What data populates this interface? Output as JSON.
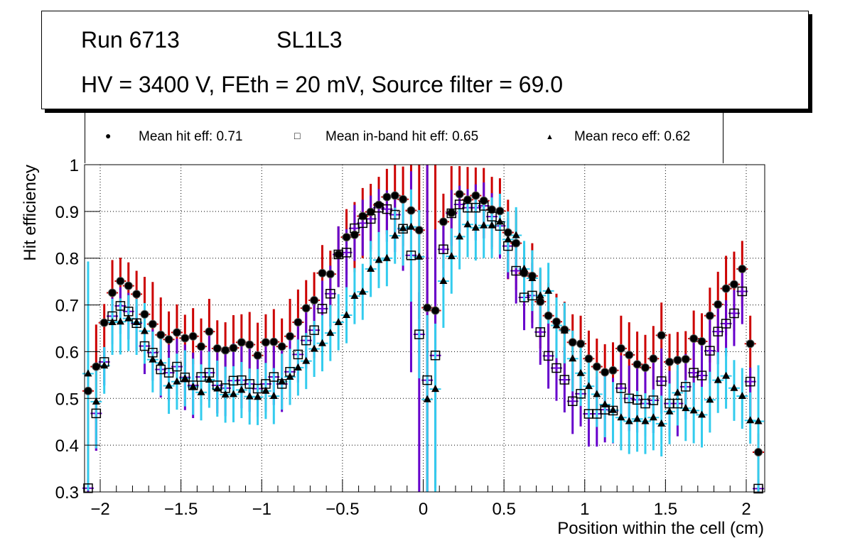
{
  "title_box": {
    "line1_left": "Run 6713",
    "line1_right": "SL1L3",
    "line2": "HV = 3400 V, FEth = 20 mV, Source filter = 69.0"
  },
  "legend": [
    {
      "symbol": "filled-circle",
      "label": "Mean hit  eff: 0.71"
    },
    {
      "symbol": "open-square",
      "label": "Mean in-band hit eff: 0.65"
    },
    {
      "symbol": "filled-triangle",
      "label": "Mean reco eff: 0.62"
    }
  ],
  "chart_data": {
    "type": "scatter",
    "title": "Run 6713 SL1L3 — HV = 3400 V, FEth = 20 mV, Source filter = 69.0",
    "xlabel": "Position within the cell (cm)",
    "ylabel": "Hit efficiency",
    "xlim": [
      -2.1,
      2.1
    ],
    "ylim": [
      0.3,
      1.0
    ],
    "xticks": [
      -2,
      -1.5,
      -1,
      -0.5,
      0,
      0.5,
      1,
      1.5,
      2
    ],
    "xtick_labels": [
      "−2",
      "−1.5",
      "−1",
      "−0.5",
      "0",
      "0.5",
      "1",
      "1.5",
      "2"
    ],
    "yticks": [
      0.3,
      0.4,
      0.5,
      0.6,
      0.7,
      0.8,
      0.9,
      1.0
    ],
    "ytick_labels": [
      "0.3",
      "0.4",
      "0.5",
      "0.6",
      "0.7",
      "0.8",
      "0.9",
      "1"
    ],
    "grid": true,
    "legend_position": "top",
    "x": [
      -2.075,
      -2.025,
      -1.975,
      -1.925,
      -1.875,
      -1.825,
      -1.775,
      -1.725,
      -1.675,
      -1.625,
      -1.575,
      -1.525,
      -1.475,
      -1.425,
      -1.375,
      -1.325,
      -1.275,
      -1.225,
      -1.175,
      -1.125,
      -1.075,
      -1.025,
      -0.975,
      -0.925,
      -0.875,
      -0.825,
      -0.775,
      -0.725,
      -0.675,
      -0.625,
      -0.575,
      -0.525,
      -0.475,
      -0.425,
      -0.375,
      -0.325,
      -0.275,
      -0.225,
      -0.175,
      -0.125,
      -0.075,
      -0.025,
      0.025,
      0.075,
      0.125,
      0.175,
      0.225,
      0.275,
      0.325,
      0.375,
      0.425,
      0.475,
      0.525,
      0.575,
      0.625,
      0.675,
      0.725,
      0.775,
      0.825,
      0.875,
      0.925,
      0.975,
      1.025,
      1.075,
      1.125,
      1.175,
      1.225,
      1.275,
      1.325,
      1.375,
      1.425,
      1.475,
      1.525,
      1.575,
      1.625,
      1.675,
      1.725,
      1.775,
      1.825,
      1.875,
      1.925,
      1.975,
      2.025,
      2.075
    ],
    "series": [
      {
        "name": "Mean hit  eff: 0.71",
        "marker": "filled-circle",
        "error_color": "#cc0000",
        "values": [
          0.516,
          0.568,
          0.662,
          0.726,
          0.751,
          0.741,
          0.723,
          0.68,
          0.659,
          0.636,
          0.626,
          0.641,
          0.629,
          0.633,
          0.611,
          0.643,
          0.607,
          0.603,
          0.608,
          0.62,
          0.615,
          0.592,
          0.62,
          0.621,
          0.611,
          0.633,
          0.663,
          0.693,
          0.71,
          0.768,
          0.766,
          0.808,
          0.845,
          0.85,
          0.89,
          0.899,
          0.914,
          0.931,
          0.934,
          0.926,
          0.902,
          0.86,
          0.694,
          0.688,
          0.878,
          0.897,
          0.937,
          0.925,
          0.934,
          0.923,
          0.904,
          0.901,
          0.855,
          0.832,
          0.768,
          0.762,
          0.707,
          0.677,
          0.664,
          0.647,
          0.62,
          0.617,
          0.585,
          0.568,
          0.556,
          0.56,
          0.607,
          0.593,
          0.573,
          0.566,
          0.585,
          0.635,
          0.578,
          0.582,
          0.584,
          0.628,
          0.622,
          0.677,
          0.701,
          0.735,
          0.744,
          0.777,
          0.617,
          0.385
        ],
        "err_up": [
          0.04,
          0.09,
          0.04,
          0.07,
          0.05,
          0.05,
          0.05,
          0.08,
          0.09,
          0.08,
          0.06,
          0.06,
          0.05,
          0.06,
          0.06,
          0.07,
          0.06,
          0.06,
          0.07,
          0.06,
          0.07,
          0.07,
          0.06,
          0.07,
          0.06,
          0.08,
          0.07,
          0.06,
          0.06,
          0.06,
          0.05,
          0.06,
          0.06,
          0.07,
          0.06,
          0.06,
          0.06,
          0.06,
          0.07,
          0.07,
          0.1,
          0.14,
          0.31,
          0.32,
          0.06,
          0.1,
          0.06,
          0.07,
          0.06,
          0.07,
          0.07,
          0.07,
          0.07,
          0.07,
          0.06,
          0.07,
          0.07,
          0.07,
          0.06,
          0.06,
          0.06,
          0.06,
          0.06,
          0.06,
          0.06,
          0.06,
          0.07,
          0.07,
          0.07,
          0.07,
          0.07,
          0.07,
          0.06,
          0.06,
          0.06,
          0.06,
          0.06,
          0.06,
          0.07,
          0.07,
          0.07,
          0.06,
          0.06,
          0.04
        ],
        "err_down": [
          0.22,
          0.18,
          0.08,
          0.07,
          0.06,
          0.06,
          0.06,
          0.07,
          0.08,
          0.08,
          0.06,
          0.06,
          0.06,
          0.06,
          0.06,
          0.06,
          0.06,
          0.06,
          0.06,
          0.06,
          0.06,
          0.06,
          0.06,
          0.06,
          0.06,
          0.06,
          0.07,
          0.07,
          0.07,
          0.07,
          0.07,
          0.07,
          0.08,
          0.08,
          0.09,
          0.08,
          0.08,
          0.08,
          0.09,
          0.1,
          0.14,
          0.19,
          0.42,
          0.38,
          0.1,
          0.09,
          0.08,
          0.08,
          0.08,
          0.08,
          0.08,
          0.09,
          0.1,
          0.1,
          0.1,
          0.1,
          0.1,
          0.1,
          0.1,
          0.1,
          0.1,
          0.1,
          0.1,
          0.1,
          0.1,
          0.1,
          0.1,
          0.1,
          0.1,
          0.1,
          0.1,
          0.1,
          0.1,
          0.1,
          0.1,
          0.1,
          0.1,
          0.1,
          0.1,
          0.1,
          0.1,
          0.08,
          0.16,
          0.09
        ]
      },
      {
        "name": "Mean in-band hit eff: 0.65",
        "marker": "open-square",
        "error_color": "#6600cc",
        "values": [
          0.308,
          0.468,
          0.578,
          0.676,
          0.698,
          0.686,
          0.661,
          0.612,
          0.598,
          0.562,
          0.555,
          0.568,
          0.545,
          0.528,
          0.546,
          0.555,
          0.528,
          0.522,
          0.538,
          0.539,
          0.531,
          0.521,
          0.531,
          0.546,
          0.531,
          0.557,
          0.594,
          0.624,
          0.646,
          0.692,
          0.724,
          0.808,
          0.812,
          0.864,
          0.875,
          0.884,
          0.908,
          0.905,
          0.893,
          0.863,
          0.806,
          0.637,
          0.539,
          0.592,
          0.819,
          0.896,
          0.915,
          0.908,
          0.908,
          0.912,
          0.889,
          0.869,
          0.826,
          0.773,
          0.716,
          0.72,
          0.642,
          0.591,
          0.565,
          0.54,
          0.494,
          0.51,
          0.467,
          0.467,
          0.476,
          0.474,
          0.522,
          0.5,
          0.497,
          0.489,
          0.496,
          0.537,
          0.489,
          0.489,
          0.525,
          0.555,
          0.549,
          0.602,
          0.643,
          0.66,
          0.682,
          0.729,
          0.536,
          0.307
        ],
        "err_up": [
          0.02,
          0.03,
          0.03,
          0.04,
          0.04,
          0.04,
          0.04,
          0.05,
          0.05,
          0.06,
          0.06,
          0.06,
          0.07,
          0.07,
          0.07,
          0.08,
          0.08,
          0.08,
          0.08,
          0.08,
          0.08,
          0.08,
          0.08,
          0.08,
          0.08,
          0.08,
          0.07,
          0.07,
          0.06,
          0.06,
          0.06,
          0.06,
          0.05,
          0.05,
          0.05,
          0.05,
          0.04,
          0.04,
          0.05,
          0.07,
          0.18,
          0.09,
          0.46,
          0.27,
          0.06,
          0.05,
          0.04,
          0.04,
          0.05,
          0.05,
          0.05,
          0.06,
          0.06,
          0.06,
          0.06,
          0.07,
          0.07,
          0.07,
          0.07,
          0.07,
          0.08,
          0.08,
          0.08,
          0.08,
          0.08,
          0.07,
          0.07,
          0.07,
          0.08,
          0.08,
          0.08,
          0.07,
          0.07,
          0.07,
          0.07,
          0.07,
          0.07,
          0.07,
          0.06,
          0.05,
          0.05,
          0.05,
          0.03,
          0.02
        ],
        "err_down": [
          0.02,
          0.08,
          0.05,
          0.06,
          0.06,
          0.06,
          0.06,
          0.06,
          0.06,
          0.06,
          0.06,
          0.06,
          0.07,
          0.07,
          0.06,
          0.06,
          0.06,
          0.06,
          0.06,
          0.06,
          0.06,
          0.06,
          0.06,
          0.06,
          0.06,
          0.06,
          0.06,
          0.06,
          0.06,
          0.06,
          0.07,
          0.07,
          0.08,
          0.07,
          0.07,
          0.07,
          0.07,
          0.07,
          0.08,
          0.09,
          0.25,
          0.34,
          0.24,
          0.25,
          0.08,
          0.07,
          0.07,
          0.07,
          0.07,
          0.07,
          0.07,
          0.07,
          0.07,
          0.07,
          0.07,
          0.07,
          0.07,
          0.07,
          0.07,
          0.07,
          0.07,
          0.07,
          0.07,
          0.07,
          0.07,
          0.07,
          0.07,
          0.07,
          0.07,
          0.07,
          0.07,
          0.07,
          0.07,
          0.07,
          0.07,
          0.07,
          0.07,
          0.07,
          0.07,
          0.07,
          0.07,
          0.07,
          0.09,
          0.02
        ]
      },
      {
        "name": "Mean reco eff: 0.62",
        "marker": "filled-triangle",
        "error_color": "#33ccee",
        "values": [
          0.553,
          0.493,
          0.57,
          0.663,
          0.664,
          0.671,
          0.663,
          0.644,
          0.583,
          0.576,
          0.527,
          0.536,
          0.543,
          0.525,
          0.513,
          0.54,
          0.521,
          0.508,
          0.509,
          0.518,
          0.504,
          0.503,
          0.516,
          0.505,
          0.536,
          0.546,
          0.566,
          0.58,
          0.606,
          0.618,
          0.64,
          0.663,
          0.678,
          0.719,
          0.728,
          0.777,
          0.796,
          0.8,
          0.848,
          0.864,
          0.867,
          0.803,
          0.498,
          0.52,
          0.751,
          0.804,
          0.846,
          0.872,
          0.865,
          0.87,
          0.87,
          0.878,
          0.84,
          0.849,
          0.777,
          0.757,
          0.72,
          0.73,
          0.656,
          0.645,
          0.585,
          0.554,
          0.526,
          0.509,
          0.487,
          0.475,
          0.459,
          0.451,
          0.456,
          0.451,
          0.459,
          0.446,
          0.472,
          0.512,
          0.479,
          0.474,
          0.465,
          0.497,
          0.539,
          0.548,
          0.522,
          0.505,
          0.453,
          0.451
        ],
        "err_up": [
          0.24,
          0.07,
          0.04,
          0.05,
          0.05,
          0.05,
          0.05,
          0.06,
          0.06,
          0.06,
          0.06,
          0.06,
          0.06,
          0.06,
          0.06,
          0.06,
          0.06,
          0.06,
          0.06,
          0.06,
          0.06,
          0.06,
          0.06,
          0.06,
          0.06,
          0.06,
          0.06,
          0.06,
          0.06,
          0.06,
          0.06,
          0.06,
          0.06,
          0.06,
          0.06,
          0.06,
          0.06,
          0.06,
          0.06,
          0.06,
          0.08,
          0.1,
          0.18,
          0.14,
          0.06,
          0.06,
          0.06,
          0.06,
          0.06,
          0.06,
          0.06,
          0.06,
          0.06,
          0.06,
          0.06,
          0.06,
          0.06,
          0.06,
          0.06,
          0.06,
          0.06,
          0.06,
          0.06,
          0.06,
          0.06,
          0.06,
          0.06,
          0.06,
          0.06,
          0.06,
          0.06,
          0.06,
          0.06,
          0.06,
          0.06,
          0.06,
          0.06,
          0.06,
          0.06,
          0.06,
          0.06,
          0.06,
          0.06,
          0.12
        ],
        "err_down": [
          0.25,
          0.1,
          0.06,
          0.07,
          0.07,
          0.07,
          0.07,
          0.07,
          0.07,
          0.07,
          0.06,
          0.06,
          0.06,
          0.06,
          0.06,
          0.06,
          0.06,
          0.06,
          0.06,
          0.06,
          0.06,
          0.06,
          0.06,
          0.06,
          0.06,
          0.06,
          0.06,
          0.06,
          0.06,
          0.06,
          0.06,
          0.06,
          0.06,
          0.06,
          0.06,
          0.06,
          0.06,
          0.06,
          0.06,
          0.08,
          0.16,
          0.26,
          0.2,
          0.25,
          0.1,
          0.08,
          0.07,
          0.07,
          0.07,
          0.07,
          0.07,
          0.07,
          0.07,
          0.07,
          0.07,
          0.07,
          0.07,
          0.07,
          0.07,
          0.07,
          0.07,
          0.07,
          0.07,
          0.07,
          0.07,
          0.07,
          0.07,
          0.07,
          0.07,
          0.07,
          0.07,
          0.07,
          0.07,
          0.07,
          0.07,
          0.07,
          0.07,
          0.07,
          0.07,
          0.07,
          0.07,
          0.07,
          0.05,
          0.15
        ]
      }
    ]
  }
}
